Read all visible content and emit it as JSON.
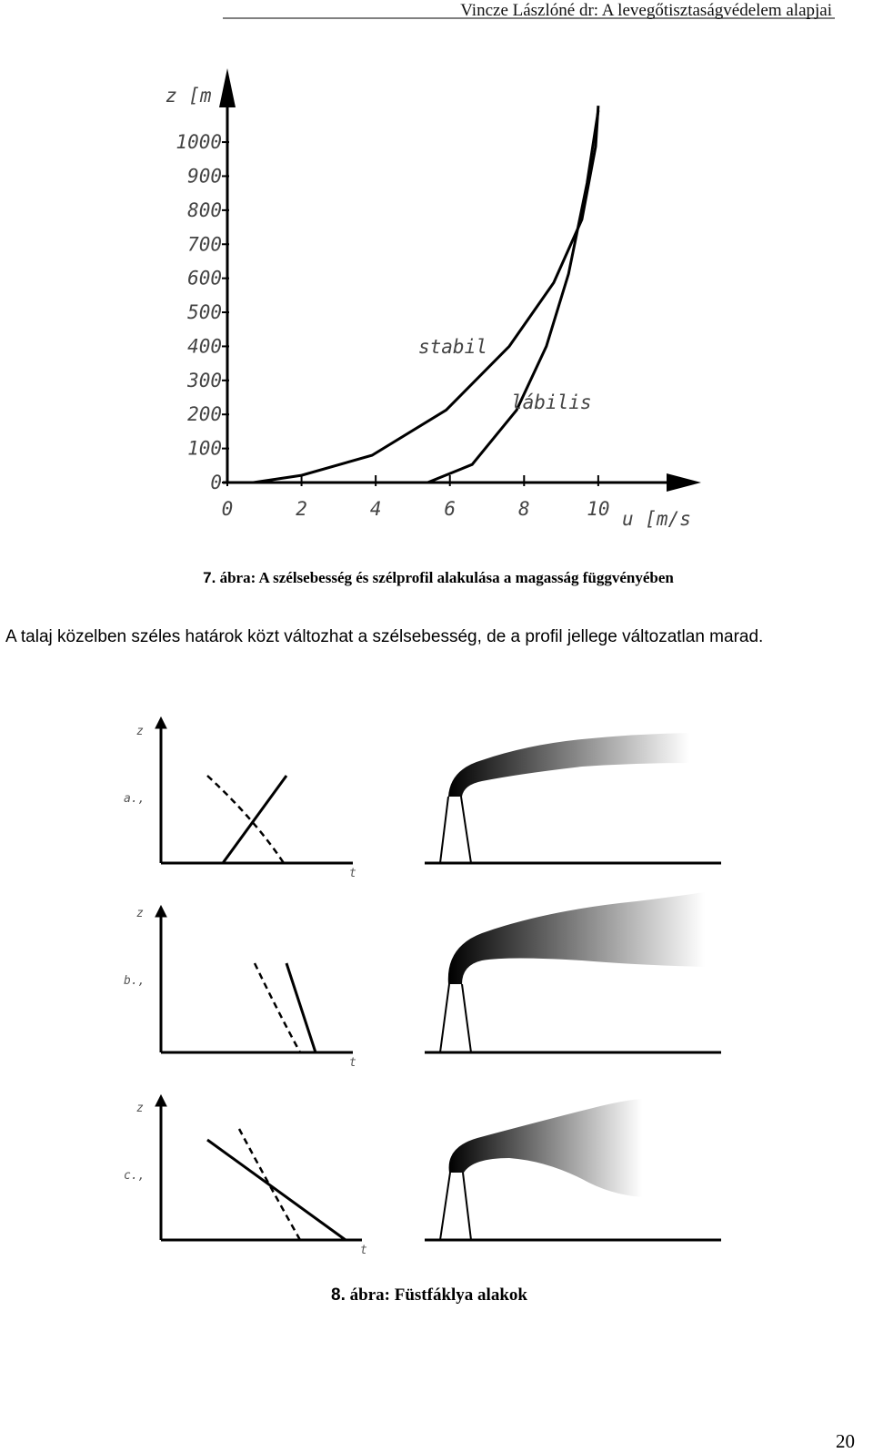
{
  "header": "Vincze Lászlóné dr: A levegőtisztaságvédelem alapjai",
  "chart_data": {
    "type": "line",
    "y_label": "z [m",
    "x_label": "u [m/s",
    "xlim": [
      0,
      12.7
    ],
    "xticks": [
      0,
      2,
      4,
      6,
      8,
      10
    ],
    "ylim": [
      0,
      1150
    ],
    "yticks": [
      0,
      100,
      200,
      300,
      400,
      500,
      600,
      700,
      800,
      900,
      1000
    ],
    "grid": false,
    "series": [
      {
        "name": "stabil",
        "color": "#000000",
        "x": [
          0.7,
          2,
          3.9,
          5.9,
          7.6,
          8.8,
          9.56,
          9.93,
          10
        ],
        "values": [
          0,
          21,
          80,
          213,
          400,
          587,
          773,
          987,
          1107
        ]
      },
      {
        "name": "lábilis",
        "color": "#000000",
        "x": [
          5.4,
          6.6,
          7.8,
          8.6,
          9.2,
          9.7,
          10
        ],
        "values": [
          0,
          53,
          213,
          400,
          613,
          880,
          1093
        ]
      }
    ]
  },
  "figure7_caption": {
    "number": "7.",
    "text": "ábra: A szélsebesség és szélprofil alakulása a magasság függvényében"
  },
  "paragraph": "A talaj közelben széles határok közt változhat a szélsebesség, de a profil jellege változatlan marad.",
  "figure8": {
    "axis_z": "z",
    "axis_t": "t",
    "panels": [
      {
        "label": "a.,"
      },
      {
        "label": "b.,"
      },
      {
        "label": "c.,"
      }
    ]
  },
  "figure8_caption": {
    "number": "8.",
    "text": "ábra: Füstfáklya alakok"
  },
  "page_number": "20"
}
